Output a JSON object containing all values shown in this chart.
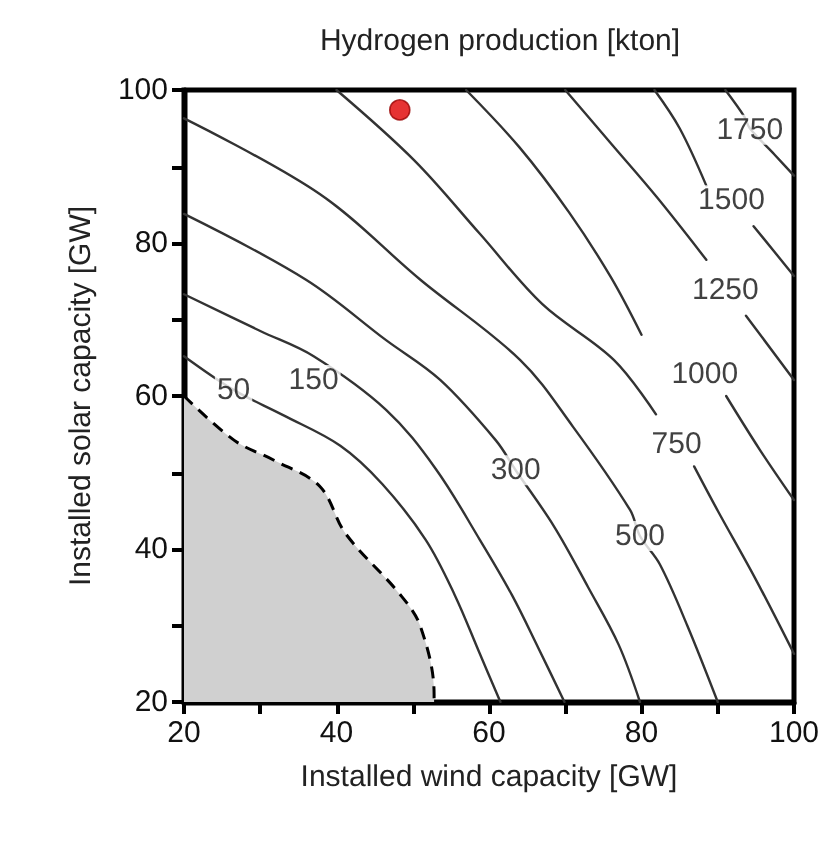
{
  "chart_data": {
    "type": "line",
    "title": "Hydrogen production [kton]",
    "xlabel": "Installed wind capacity [GW]",
    "ylabel": "Installed solar capacity [GW]",
    "xlim": [
      20,
      100
    ],
    "ylim": [
      20,
      100
    ],
    "xticks": [
      20,
      40,
      60,
      80,
      100
    ],
    "yticks": [
      20,
      40,
      60,
      80,
      100
    ],
    "marker": "none",
    "line_style": "solid",
    "series": [
      {
        "type": "area",
        "color": "#d0d0d0",
        "line_style": "dashed",
        "x": [
          20,
          26.6,
          31.8,
          37.8,
          41.2,
          48.3,
          51,
          52.8,
          52.8
        ],
        "values": [
          60,
          54.2,
          51.6,
          48.2,
          42,
          34.1,
          29.9,
          21,
          20
        ]
      },
      {
        "color": "#333333",
        "x": [
          20,
          26.5,
          33,
          40.5,
          46,
          51.7,
          55.5,
          58.8,
          61.5
        ],
        "values": [
          65.2,
          60.8,
          57.5,
          53.5,
          48.5,
          41.2,
          34,
          26.3,
          20
        ]
      },
      {
        "color": "#333333",
        "x": [
          20,
          30,
          37,
          46.5,
          53,
          58.8,
          63,
          66.5,
          69.9
        ],
        "values": [
          73.3,
          68.5,
          65.2,
          58.2,
          50.5,
          41.2,
          34,
          27,
          20
        ]
      },
      {
        "color": "#333333",
        "x": [
          20,
          36,
          46.5,
          53.6,
          60.9,
          63.5,
          68.5,
          73,
          77,
          79.8
        ],
        "values": [
          83.8,
          75.2,
          67.3,
          62.1,
          54.2,
          50.3,
          43,
          35,
          27.5,
          20
        ]
      },
      {
        "color": "#333333",
        "x": [
          20,
          37.8,
          51,
          64.1,
          71,
          78.5,
          79.8,
          82.4,
          86,
          90
        ],
        "values": [
          96.3,
          86.4,
          75.2,
          64.7,
          56,
          45.1,
          41.7,
          38,
          30,
          20
        ]
      },
      {
        "color": "#333333",
        "x": [
          40,
          50.2,
          58.8,
          67,
          76.4,
          81.9,
          84.6,
          86.9,
          90,
          95,
          100
        ],
        "values": [
          100,
          90.8,
          81.2,
          72,
          64.7,
          57.6,
          null,
          50.8,
          45,
          36,
          26.3
        ]
      },
      {
        "color": "#333333",
        "x": [
          57,
          64,
          70.5,
          76,
          80,
          88.3,
          91.1,
          95.5,
          100
        ],
        "values": [
          100,
          92.5,
          84,
          75.5,
          68,
          null,
          60,
          53,
          46.4
        ]
      },
      {
        "color": "#333333",
        "x": [
          70,
          76,
          82,
          88.5,
          91,
          93.7,
          100
        ],
        "values": [
          100,
          93,
          86,
          77.8,
          null,
          70.5,
          62.1
        ]
      },
      {
        "color": "#333333",
        "x": [
          81.7,
          85,
          88.5,
          91.8,
          94.7,
          100
        ],
        "values": [
          100,
          95,
          87.5,
          null,
          82.2,
          75.7
        ]
      },
      {
        "color": "#333333",
        "x": [
          91,
          93.5,
          94.2,
          97.4,
          100
        ],
        "values": [
          100,
          96.5,
          95,
          91.6,
          88.8
        ]
      },
      {
        "type": "scatter",
        "marker": "circle",
        "color": "#e00000",
        "x": [
          48.3
        ],
        "values": [
          97.4
        ]
      }
    ],
    "annotations": [
      {
        "text": "50",
        "x": 26.5,
        "y": 60.8
      },
      {
        "text": "150",
        "x": 37,
        "y": 62.1
      },
      {
        "text": "300",
        "x": 63.5,
        "y": 50.3
      },
      {
        "text": "500",
        "x": 79.8,
        "y": 41.7
      },
      {
        "text": "750",
        "x": 84.6,
        "y": 53.7
      },
      {
        "text": "1000",
        "x": 88.3,
        "y": 62.9
      },
      {
        "text": "1250",
        "x": 91,
        "y": 73.9
      },
      {
        "text": "1500",
        "x": 91.8,
        "y": 85.6
      },
      {
        "text": "1750",
        "x": 94.2,
        "y": 94.8
      }
    ]
  }
}
